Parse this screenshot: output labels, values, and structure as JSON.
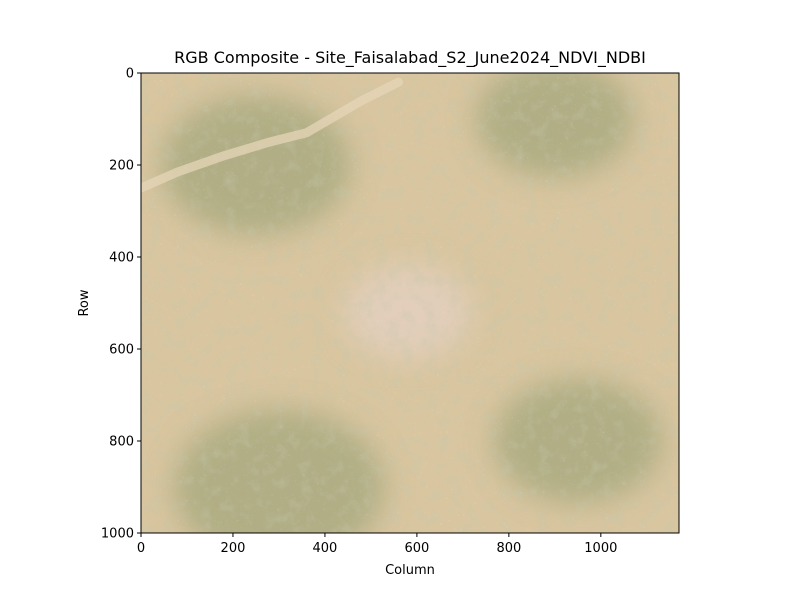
{
  "chart_data": {
    "type": "heatmap",
    "title": "RGB Composite - Site_Faisalabad_S2_June2024_NDVI_NDBI",
    "xlabel": "Column",
    "ylabel": "Row",
    "xlim": [
      0,
      1170
    ],
    "ylim": [
      1000,
      0
    ],
    "x_ticks": [
      0,
      200,
      400,
      600,
      800,
      1000
    ],
    "y_ticks": [
      0,
      200,
      400,
      600,
      800,
      1000
    ],
    "grid": false,
    "legend": "none",
    "colors": {
      "base": "#d9c6a0",
      "vegetation": "#8f9a6e",
      "urban": "#e3cfc0",
      "riverbed": "#e6d6b8"
    },
    "features": [
      {
        "name": "urban",
        "cx": 580,
        "cy": 520,
        "r": 120
      },
      {
        "name": "vegetation",
        "cx": 250,
        "cy": 200,
        "r": 180
      },
      {
        "name": "vegetation",
        "cx": 300,
        "cy": 900,
        "r": 200
      },
      {
        "name": "vegetation",
        "cx": 950,
        "cy": 800,
        "r": 160
      },
      {
        "name": "vegetation",
        "cx": 900,
        "cy": 100,
        "r": 150
      }
    ]
  }
}
